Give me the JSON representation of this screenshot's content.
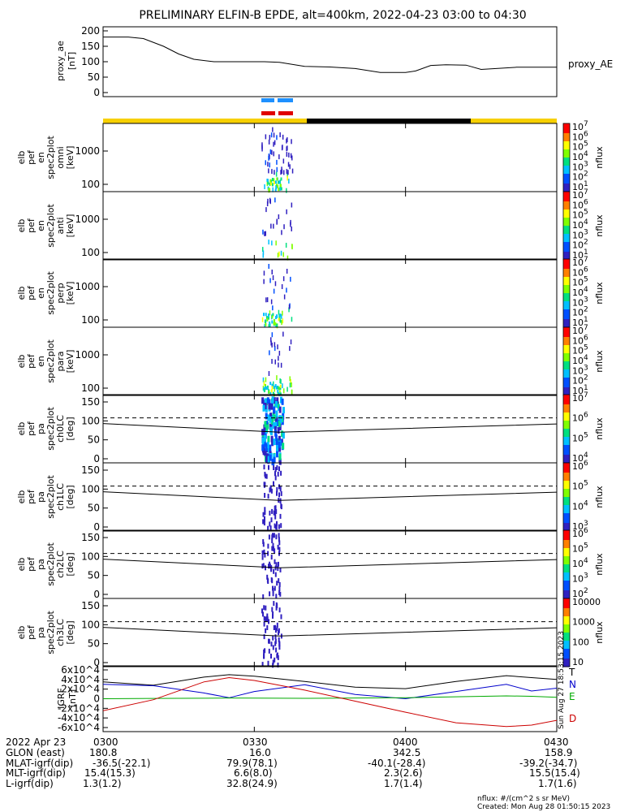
{
  "title": "PRELIMINARY ELFIN-B EPDE, alt=400km, 2022-04-23 03:00 to 04:30",
  "colors": {
    "line": "#000000",
    "yellow_bar": "#f7d000",
    "black_bar": "#000000",
    "blue_marker": "#1e90ff",
    "red_marker": "#e00000",
    "T": "#000000",
    "N": "#0000cc",
    "E": "#00aa00",
    "D": "#cc0000"
  },
  "time_axis": {
    "start": "03:00",
    "end": "04:30",
    "tick_labels": [
      "0300",
      "0330",
      "0400",
      "0430"
    ]
  },
  "panels": {
    "ae": {
      "ylabel": [
        "proxy_ae",
        "[nT]"
      ],
      "yticks": [
        "200",
        "150",
        "100",
        "50",
        "0"
      ],
      "right_label": "proxy_AE"
    },
    "spec": [
      {
        "ylabel": [
          "elb",
          "pef",
          "en",
          "spec2plot",
          "omni",
          "[keV]"
        ],
        "yticks": [
          "1000",
          "100"
        ],
        "cbar_label": "nflux"
      },
      {
        "ylabel": [
          "elb",
          "pef",
          "en",
          "spec2plot",
          "anti",
          "[keV]"
        ],
        "yticks": [
          "1000",
          "100"
        ],
        "cbar_label": "nflux"
      },
      {
        "ylabel": [
          "elb",
          "pef",
          "en",
          "spec2plot",
          "perp",
          "[keV]"
        ],
        "yticks": [
          "1000",
          "100"
        ],
        "cbar_label": "nflux"
      },
      {
        "ylabel": [
          "elb",
          "pef",
          "en",
          "spec2plot",
          "para",
          "[keV]"
        ],
        "yticks": [
          "1000",
          "100"
        ],
        "cbar_label": "nflux"
      }
    ],
    "pa": [
      {
        "ylabel": [
          "elb",
          "pef",
          "pa",
          "spec2plot",
          "ch0LC",
          "[deg]"
        ],
        "yticks": [
          "150",
          "100",
          "50",
          "0"
        ],
        "cbar_label": "nflux"
      },
      {
        "ylabel": [
          "elb",
          "pef",
          "pa",
          "spec2plot",
          "ch1LC",
          "[deg]"
        ],
        "yticks": [
          "150",
          "100",
          "50",
          "0"
        ],
        "cbar_label": "nflux"
      },
      {
        "ylabel": [
          "elb",
          "pef",
          "pa",
          "spec2plot",
          "ch2LC",
          "[deg]"
        ],
        "yticks": [
          "150",
          "100",
          "50",
          "0"
        ],
        "cbar_label": "nflux"
      },
      {
        "ylabel": [
          "elb",
          "pef",
          "pa",
          "spec2plot",
          "ch3LC",
          "[deg]"
        ],
        "yticks": [
          "150",
          "100",
          "50",
          "0"
        ],
        "cbar_label": "nflux"
      }
    ],
    "igrf": {
      "ylabel": [
        "IGRF",
        "[nT]"
      ],
      "component_labels": [
        "T",
        "N",
        "E",
        "D"
      ],
      "side_text": "Sun Aug 27 18:53:15 2023"
    }
  },
  "colorbars": [
    {
      "exponents": [
        "7",
        "6",
        "5",
        "4",
        "3",
        "2",
        "1"
      ]
    },
    {
      "exponents": [
        "7",
        "6",
        "5",
        "4",
        "3",
        "2",
        "1"
      ]
    },
    {
      "exponents": [
        "7",
        "6",
        "5",
        "4",
        "3",
        "2",
        "1"
      ]
    },
    {
      "exponents": [
        "7",
        "6",
        "5",
        "4",
        "3",
        "2",
        "1"
      ]
    },
    {
      "exponents": [
        "7",
        "6",
        "5",
        "4"
      ]
    },
    {
      "exponents": [
        "6",
        "5",
        "4",
        "3"
      ]
    },
    {
      "exponents": [
        "6",
        "5",
        "4",
        "3",
        "2"
      ]
    },
    {
      "plain": [
        "10000",
        "1000",
        "100",
        "10"
      ]
    }
  ],
  "chart_data": {
    "type": "line",
    "x_range": [
      "03:00",
      "04:30"
    ],
    "proxy_ae": {
      "ylim": [
        0,
        200
      ],
      "x": [
        "03:00",
        "03:05",
        "03:08",
        "03:12",
        "03:15",
        "03:18",
        "03:22",
        "03:25",
        "03:28",
        "03:30",
        "03:32",
        "03:35",
        "03:40",
        "03:45",
        "03:50",
        "03:55",
        "04:00",
        "04:02",
        "04:05",
        "04:08",
        "04:12",
        "04:15",
        "04:18",
        "04:22",
        "04:25",
        "04:30"
      ],
      "values": [
        180,
        180,
        175,
        150,
        125,
        108,
        100,
        100,
        100,
        100,
        100,
        98,
        85,
        83,
        78,
        65,
        65,
        70,
        88,
        90,
        89,
        75,
        78,
        82,
        82,
        82
      ]
    },
    "igrf": {
      "ylim": [
        -60000,
        60000
      ],
      "yticks": [
        "6x10^4",
        "4x10^4",
        "2x10^4",
        "0",
        "-2x10^4",
        "-4x10^4",
        "-6x10^4"
      ],
      "x": [
        "03:00",
        "03:10",
        "03:20",
        "03:25",
        "03:30",
        "03:40",
        "03:50",
        "04:00",
        "04:10",
        "04:20",
        "04:25",
        "04:30"
      ],
      "series": [
        {
          "name": "T",
          "values": [
            35000,
            28000,
            45000,
            50000,
            47000,
            36000,
            24000,
            21000,
            36000,
            48000,
            44000,
            40000
          ]
        },
        {
          "name": "N",
          "values": [
            30000,
            27000,
            12000,
            2000,
            15000,
            29000,
            9000,
            0,
            15000,
            30000,
            16000,
            22000
          ]
        },
        {
          "name": "E",
          "values": [
            0,
            600,
            1000,
            1500,
            1200,
            800,
            1500,
            2000,
            4000,
            6000,
            5000,
            3000
          ]
        },
        {
          "name": "D",
          "values": [
            -25000,
            -2000,
            35000,
            44000,
            38000,
            18000,
            -5000,
            -28000,
            -50000,
            -58000,
            -55000,
            -45000
          ]
        }
      ]
    },
    "loss_cone_reference_deg": [
      {
        "x": "03:00",
        "solid": 93,
        "dashed": 108
      },
      {
        "x": "03:35",
        "solid": 70,
        "dashed": 108
      },
      {
        "x": "04:30",
        "solid": 92,
        "dashed": 108
      }
    ]
  },
  "footer": {
    "rows": [
      {
        "label": "2022 Apr 23",
        "values": [
          "0300",
          "0330",
          "0400",
          "0430"
        ]
      },
      {
        "label": "GLON (east)",
        "values": [
          "180.8",
          "16.0",
          "342.5",
          "158.9"
        ]
      },
      {
        "label": "MLAT-igrf(dip)",
        "values": [
          "-36.5(-22.1)",
          "79.9(78.1)",
          "-40.1(-28.4)",
          "-39.2(-34.7)"
        ]
      },
      {
        "label": "MLT-igrf(dip)",
        "values": [
          "15.4(15.3)",
          "6.6(8.0)",
          "2.3(2.6)",
          "15.5(15.4)"
        ]
      },
      {
        "label": "L-igrf(dip)",
        "values": [
          "1.3(1.2)",
          "32.8(24.9)",
          "1.7(1.4)",
          "1.7(1.6)"
        ]
      }
    ],
    "nflux_units": "nflux: #/(cm^2 s sr MeV)",
    "created": "Created: Mon Aug 28 01:50:15 2023"
  }
}
